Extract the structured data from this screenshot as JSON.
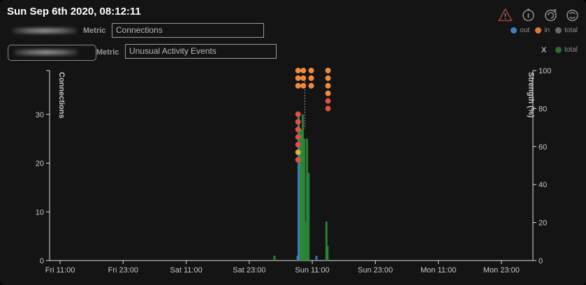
{
  "header": {
    "timestamp": "Sun Sep 6th 2020, 08:12:11"
  },
  "metric_rows": [
    {
      "label": "Metric",
      "value": "Connections"
    },
    {
      "label": "Metric",
      "value": "Unusual Activity Events"
    }
  ],
  "toolbar": {
    "icons": [
      "warning-icon",
      "info-icon",
      "refresh-icon",
      "sync-icon"
    ]
  },
  "legend": {
    "items": [
      {
        "label": "out",
        "color": "#3f7fbf"
      },
      {
        "label": "in",
        "color": "#e0763c"
      },
      {
        "label": "total",
        "color": "#6a6a6a"
      }
    ],
    "x_text": "X",
    "x_item": {
      "label": "total",
      "color": "#2f6f30"
    }
  },
  "chart_data": {
    "type": "bar",
    "left_axis": {
      "label": "Connections",
      "ticks": [
        0,
        10,
        20,
        30
      ],
      "range": [
        0,
        39
      ]
    },
    "right_axis": {
      "label": "Strength (%)",
      "ticks": [
        0,
        20,
        40,
        60,
        80,
        100
      ],
      "range": [
        0,
        100
      ]
    },
    "x_ticks": [
      "Fri 11:00",
      "Fri 23:00",
      "Sat 11:00",
      "Sat 23:00",
      "Sun 11:00",
      "Sun 23:00",
      "Mon 11:00",
      "Mon 23:00"
    ],
    "x_tick_hours": [
      0,
      12,
      24,
      36,
      48,
      60,
      72,
      84
    ],
    "x_range_hours": [
      -2,
      90
    ],
    "series": [
      {
        "name": "total",
        "color": "#2e8b3a",
        "values": [
          [
            40.8,
            1
          ],
          [
            45.5,
            22
          ],
          [
            45.8,
            27
          ],
          [
            46.0,
            26
          ],
          [
            46.2,
            30
          ],
          [
            46.5,
            25
          ],
          [
            46.7,
            8
          ],
          [
            47.0,
            25
          ],
          [
            47.3,
            18
          ],
          [
            50.7,
            8
          ],
          [
            50.9,
            3
          ]
        ]
      },
      {
        "name": "out",
        "color": "#3f7fbf",
        "values": [
          [
            45.2,
            1
          ],
          [
            45.4,
            30
          ],
          [
            48.8,
            1
          ]
        ]
      }
    ],
    "dots": {
      "columns": [
        {
          "x": 45.3,
          "values": [
            100,
            96,
            92,
            77,
            73,
            69,
            65,
            61,
            57,
            53
          ]
        },
        {
          "x": 46.3,
          "values": [
            100,
            96,
            92
          ]
        },
        {
          "x": 47.8,
          "values": [
            100,
            96,
            92
          ]
        },
        {
          "x": 51.0,
          "values": [
            100,
            96,
            92,
            88,
            84,
            80
          ]
        }
      ],
      "colors_by_strength": [
        {
          "min": 85,
          "color": "#f08a3c"
        },
        {
          "min": 60,
          "color": "#e0513a"
        },
        {
          "min": 55,
          "color": "#e0b030"
        },
        {
          "min": 0,
          "color": "#e0513a"
        }
      ]
    }
  }
}
